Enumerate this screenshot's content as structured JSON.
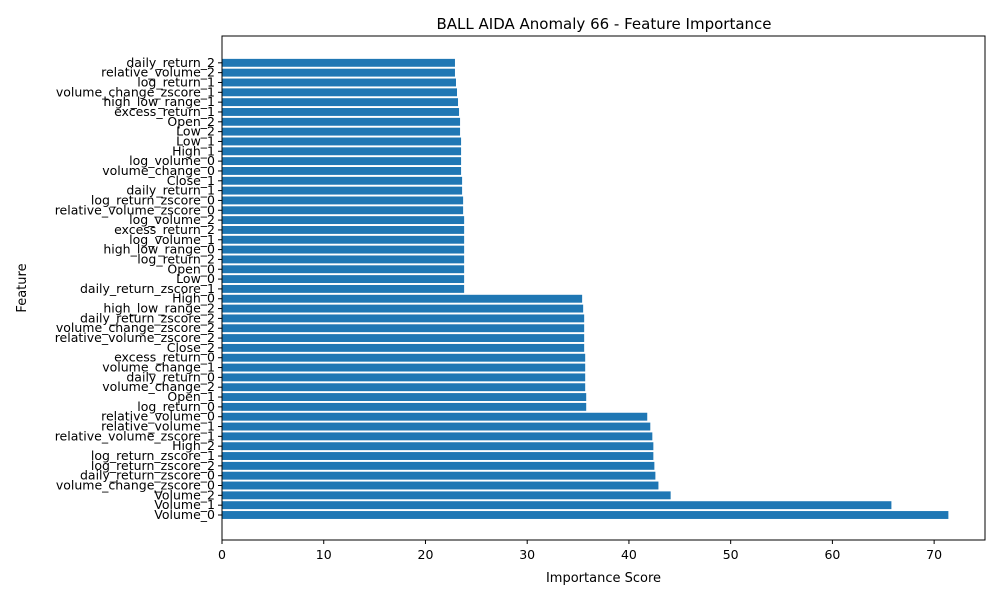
{
  "chart_data": {
    "type": "bar",
    "orientation": "horizontal",
    "title": "BALL AIDA Anomaly 66 - Feature Importance",
    "xlabel": "Importance Score",
    "ylabel": "Feature",
    "xlim": [
      0,
      75
    ],
    "xticks": [
      0,
      10,
      20,
      30,
      40,
      50,
      60,
      70
    ],
    "bar_color": "#1f77b4",
    "grid": false,
    "categories": [
      "Volume_0",
      "Volume_1",
      "Volume_2",
      "volume_change_zscore_0",
      "daily_return_zscore_0",
      "log_return_zscore_2",
      "log_return_zscore_1",
      "High_2",
      "relative_volume_zscore_1",
      "relative_volume_1",
      "relative_volume_0",
      "log_return_0",
      "Open_1",
      "volume_change_2",
      "daily_return_0",
      "volume_change_1",
      "excess_return_0",
      "Close_2",
      "relative_volume_zscore_2",
      "volume_change_zscore_2",
      "daily_return_zscore_2",
      "high_low_range_2",
      "High_0",
      "daily_return_zscore_1",
      "Low_0",
      "Open_0",
      "log_return_2",
      "high_low_range_0",
      "log_volume_1",
      "excess_return_2",
      "log_volume_2",
      "relative_volume_zscore_0",
      "log_return_zscore_0",
      "daily_return_1",
      "Close_1",
      "volume_change_0",
      "log_volume_0",
      "High_1",
      "Low_1",
      "Low_2",
      "Open_2",
      "excess_return_1",
      "high_low_range_1",
      "volume_change_zscore_1",
      "log_return_1",
      "relative_volume_2",
      "daily_return_2"
    ],
    "values": [
      71.4,
      65.8,
      44.1,
      42.9,
      42.6,
      42.5,
      42.4,
      42.4,
      42.3,
      42.1,
      41.8,
      35.8,
      35.8,
      35.7,
      35.7,
      35.7,
      35.7,
      35.6,
      35.6,
      35.6,
      35.6,
      35.5,
      35.4,
      23.8,
      23.8,
      23.8,
      23.8,
      23.8,
      23.8,
      23.8,
      23.8,
      23.7,
      23.7,
      23.6,
      23.6,
      23.5,
      23.5,
      23.5,
      23.5,
      23.4,
      23.4,
      23.3,
      23.2,
      23.1,
      23.0,
      22.9,
      22.9
    ]
  }
}
